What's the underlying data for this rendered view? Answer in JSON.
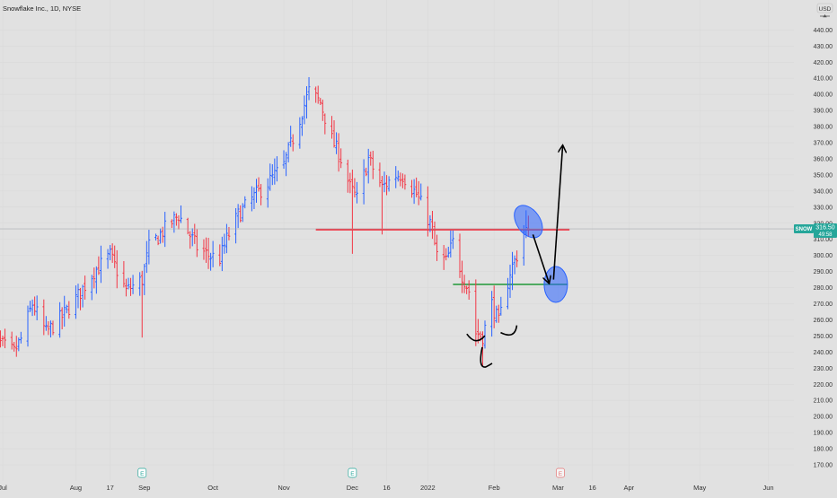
{
  "header": {
    "symbol_title": "Snowflake Inc., 1D, NYSE",
    "currency": "USD"
  },
  "price_tag": {
    "ticker": "SNOW",
    "price": "316.50",
    "countdown": "49:58",
    "color": "#26a69a"
  },
  "colors": {
    "up": "#2962ff",
    "down": "#f23645",
    "resistance": "#f23645",
    "support": "#2e9e44",
    "highlight": "#2962ff",
    "drawing": "#000000",
    "background": "#e1e1e1"
  },
  "earnings_markers": [
    {
      "label": "E",
      "date": "2021-08-31",
      "state": "past"
    },
    {
      "label": "E",
      "date": "2021-12-01",
      "state": "past"
    },
    {
      "label": "E",
      "date": "2022-03-02",
      "state": "upcoming"
    }
  ],
  "chart_data": {
    "type": "ohlc",
    "title": "Snowflake Inc., 1D, NYSE",
    "ylabel": "USD",
    "ylim": [
      165,
      450
    ],
    "y_ticks": [
      170,
      180,
      190,
      200,
      210,
      220,
      230,
      240,
      250,
      260,
      270,
      280,
      290,
      300,
      310,
      320,
      330,
      340,
      350,
      360,
      370,
      380,
      390,
      400,
      410,
      420,
      430,
      440
    ],
    "x_ticks": [
      {
        "label": "Jul",
        "date": "2021-07-01"
      },
      {
        "label": "Aug",
        "date": "2021-08-02"
      },
      {
        "label": "17",
        "date": "2021-08-17"
      },
      {
        "label": "Sep",
        "date": "2021-09-01"
      },
      {
        "label": "Oct",
        "date": "2021-10-01"
      },
      {
        "label": "Nov",
        "date": "2021-11-01"
      },
      {
        "label": "Dec",
        "date": "2021-12-01"
      },
      {
        "label": "16",
        "date": "2021-12-16"
      },
      {
        "label": "2022",
        "date": "2022-01-03"
      },
      {
        "label": "Feb",
        "date": "2022-02-01"
      },
      {
        "label": "Mar",
        "date": "2022-03-01"
      },
      {
        "label": "16",
        "date": "2022-03-16"
      },
      {
        "label": "Apr",
        "date": "2022-04-01"
      },
      {
        "label": "May",
        "date": "2022-05-02"
      },
      {
        "label": "Jun",
        "date": "2022-06-01"
      }
    ],
    "close_path": [
      [
        "2021-06-24",
        252
      ],
      [
        "2021-07-01",
        244
      ],
      [
        "2021-07-06",
        240
      ],
      [
        "2021-07-09",
        248
      ],
      [
        "2021-07-14",
        270
      ],
      [
        "2021-07-20",
        252
      ],
      [
        "2021-07-27",
        262
      ],
      [
        "2021-08-03",
        275
      ],
      [
        "2021-08-10",
        290
      ],
      [
        "2021-08-17",
        300
      ],
      [
        "2021-08-24",
        278
      ],
      [
        "2021-08-31",
        285
      ],
      [
        "2021-09-03",
        305
      ],
      [
        "2021-09-09",
        315
      ],
      [
        "2021-09-16",
        325
      ],
      [
        "2021-09-20",
        315
      ],
      [
        "2021-09-24",
        305
      ],
      [
        "2021-09-29",
        300
      ],
      [
        "2021-10-04",
        298
      ],
      [
        "2021-10-07",
        310
      ],
      [
        "2021-10-12",
        325
      ],
      [
        "2021-10-18",
        335
      ],
      [
        "2021-10-25",
        345
      ],
      [
        "2021-11-01",
        356
      ],
      [
        "2021-11-08",
        385
      ],
      [
        "2021-11-12",
        402
      ],
      [
        "2021-11-17",
        395
      ],
      [
        "2021-11-22",
        372
      ],
      [
        "2021-11-26",
        360
      ],
      [
        "2021-11-30",
        342
      ],
      [
        "2021-12-03",
        335
      ],
      [
        "2021-12-08",
        360
      ],
      [
        "2021-12-14",
        342
      ],
      [
        "2021-12-20",
        350
      ],
      [
        "2021-12-23",
        350
      ],
      [
        "2021-12-29",
        338
      ],
      [
        "2022-01-04",
        320
      ],
      [
        "2022-01-07",
        300
      ],
      [
        "2022-01-11",
        296
      ],
      [
        "2022-01-14",
        308
      ],
      [
        "2022-01-18",
        288
      ],
      [
        "2022-01-21",
        278
      ],
      [
        "2022-01-24",
        252
      ],
      [
        "2022-01-27",
        250
      ],
      [
        "2022-01-31",
        270
      ],
      [
        "2022-02-03",
        258
      ],
      [
        "2022-02-08",
        290
      ],
      [
        "2022-02-11",
        300
      ],
      [
        "2022-02-14",
        315
      ],
      [
        "2022-02-16",
        316.5
      ]
    ],
    "annotations": [
      {
        "type": "horizontal_line",
        "name": "resistance",
        "price": 316,
        "from": "2021-11-15",
        "to": "2022-03-06",
        "color": "#f23645"
      },
      {
        "type": "horizontal_line",
        "name": "support",
        "price": 282,
        "from": "2022-01-14",
        "to": "2022-03-05",
        "color": "#2e9e44"
      },
      {
        "type": "ellipse",
        "name": "breakout-circle",
        "date": "2022-02-16",
        "price": 321
      },
      {
        "type": "ellipse",
        "name": "retest-circle",
        "date": "2022-02-28",
        "price": 282
      },
      {
        "type": "arrow",
        "name": "pullback-arrow",
        "from": [
          "2022-02-18",
          313
        ],
        "to": [
          "2022-02-25",
          283
        ]
      },
      {
        "type": "arrow",
        "name": "target-arrow",
        "from": [
          "2022-02-27",
          285
        ],
        "to": [
          "2022-03-03",
          368
        ]
      },
      {
        "type": "arc",
        "name": "left-shoulder-arc",
        "date": "2022-01-24",
        "price": 249
      },
      {
        "type": "arc",
        "name": "head-arc",
        "date": "2022-01-28",
        "price": 233
      },
      {
        "type": "arc",
        "name": "right-shoulder-arc",
        "date": "2022-02-07",
        "price": 251
      }
    ]
  }
}
